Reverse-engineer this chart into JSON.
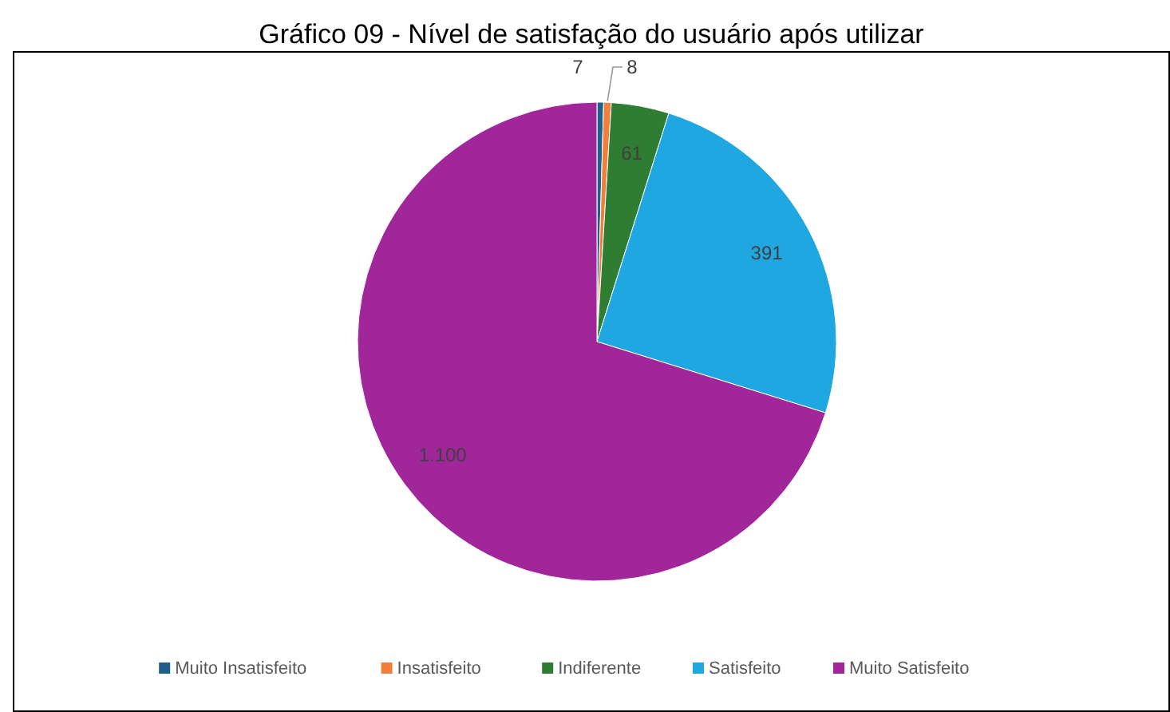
{
  "chart_data": {
    "type": "pie",
    "title": "Gráfico 09 - Nível de satisfação do usuário após utilizar",
    "categories": [
      "Muito Insatisfeito",
      "Insatisfeito",
      "Indiferente",
      "Satisfeito",
      "Muito Satisfeito"
    ],
    "values": [
      7,
      8,
      61,
      391,
      1100
    ],
    "value_labels": [
      "7",
      "8",
      "61",
      "391",
      "1.100"
    ],
    "colors": [
      "#1f5f8b",
      "#f07f3c",
      "#2e7d32",
      "#1ea7e1",
      "#a0269a"
    ],
    "legend": "bottom"
  }
}
